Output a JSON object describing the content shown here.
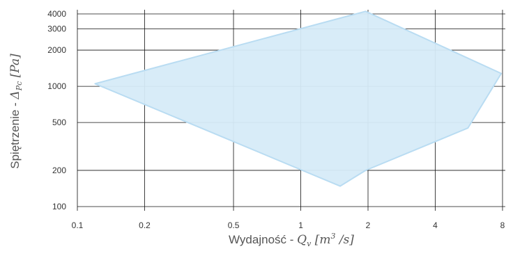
{
  "chart_data": {
    "type": "area",
    "xscale": "log",
    "yscale": "log",
    "xlim": [
      0.1,
      8
    ],
    "ylim": [
      100,
      4000
    ],
    "grid": true,
    "xticks": [
      {
        "value": 0.1,
        "label": "0.1"
      },
      {
        "value": 0.2,
        "label": "0.2"
      },
      {
        "value": 0.5,
        "label": "0.5"
      },
      {
        "value": 1,
        "label": "1"
      },
      {
        "value": 2,
        "label": "2"
      },
      {
        "value": 4,
        "label": "4"
      },
      {
        "value": 8,
        "label": "8"
      }
    ],
    "yticks": [
      {
        "value": 100,
        "label": "100"
      },
      {
        "value": 200,
        "label": "200"
      },
      {
        "value": 500,
        "label": "500"
      },
      {
        "value": 1000,
        "label": "1000"
      },
      {
        "value": 2000,
        "label": "2000"
      },
      {
        "value": 3000,
        "label": "3000"
      },
      {
        "value": 4000,
        "label": "4000"
      }
    ],
    "xlabel": {
      "text": "Wydajność - ",
      "var": "Q",
      "sub": "v",
      "unit_open": " [m",
      "unit_exp": "3",
      "unit_close": " /s]"
    },
    "ylabel": {
      "text": "Spiętrzenie - ",
      "var": "Δ",
      "sub": "Pc",
      "unit": " [Pa]"
    },
    "region": {
      "fill": "#d6ebf8",
      "stroke": "#b9dcf2",
      "points": [
        [
          0.12,
          1050
        ],
        [
          1.95,
          4200
        ],
        [
          7.9,
          1280
        ],
        [
          5.6,
          450
        ],
        [
          1.95,
          200
        ],
        [
          1.5,
          148
        ]
      ]
    }
  }
}
